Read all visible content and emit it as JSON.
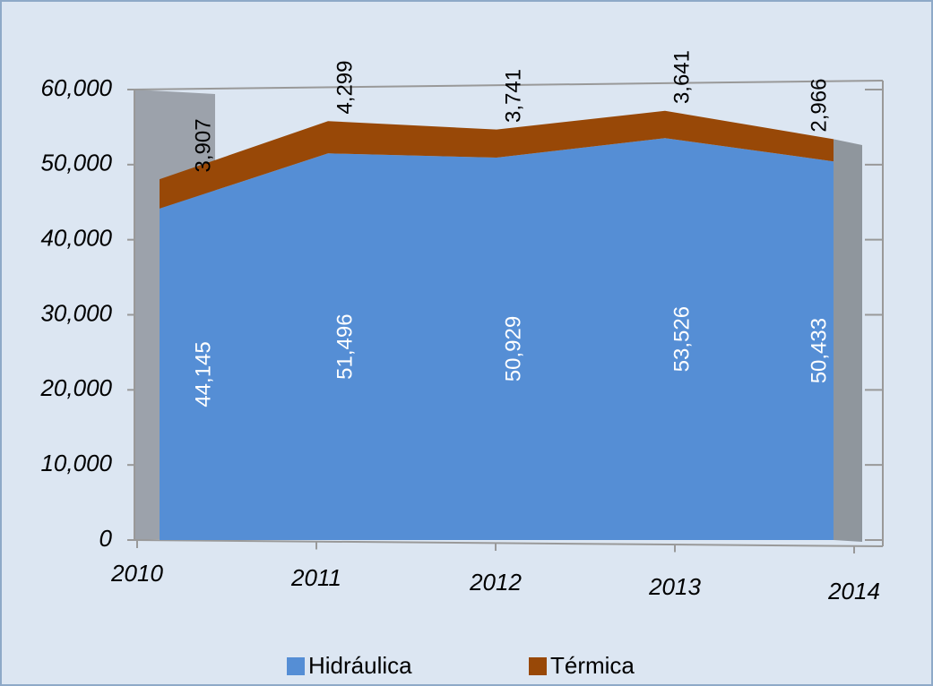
{
  "chart_data": {
    "type": "area",
    "categories": [
      "2010",
      "2011",
      "2012",
      "2013",
      "2014"
    ],
    "series": [
      {
        "name": "Hidráulica",
        "color": "#558ed5",
        "values": [
          44145,
          51496,
          50929,
          53526,
          50433
        ],
        "value_labels": [
          "44,145",
          "51,496",
          "50,929",
          "53,526",
          "50,433"
        ]
      },
      {
        "name": "Térmica",
        "color": "#984807",
        "values": [
          3907,
          4299,
          3741,
          3641,
          2966
        ],
        "value_labels": [
          "3,907",
          "4,299",
          "3,741",
          "3,641",
          "2,966"
        ]
      }
    ],
    "stacked": true,
    "ylim": [
      0,
      60000
    ],
    "yticks": [
      0,
      {
        "value": 10000,
        "label": "10,000"
      },
      {
        "value": 20000,
        "label": "20,000"
      },
      {
        "value": 30000,
        "label": "30,000"
      },
      {
        "value": 40000,
        "label": "40,000"
      },
      {
        "value": 50000,
        "label": "50,000"
      },
      {
        "value": 60000,
        "label": "60,000"
      }
    ],
    "legend": "bottom"
  }
}
